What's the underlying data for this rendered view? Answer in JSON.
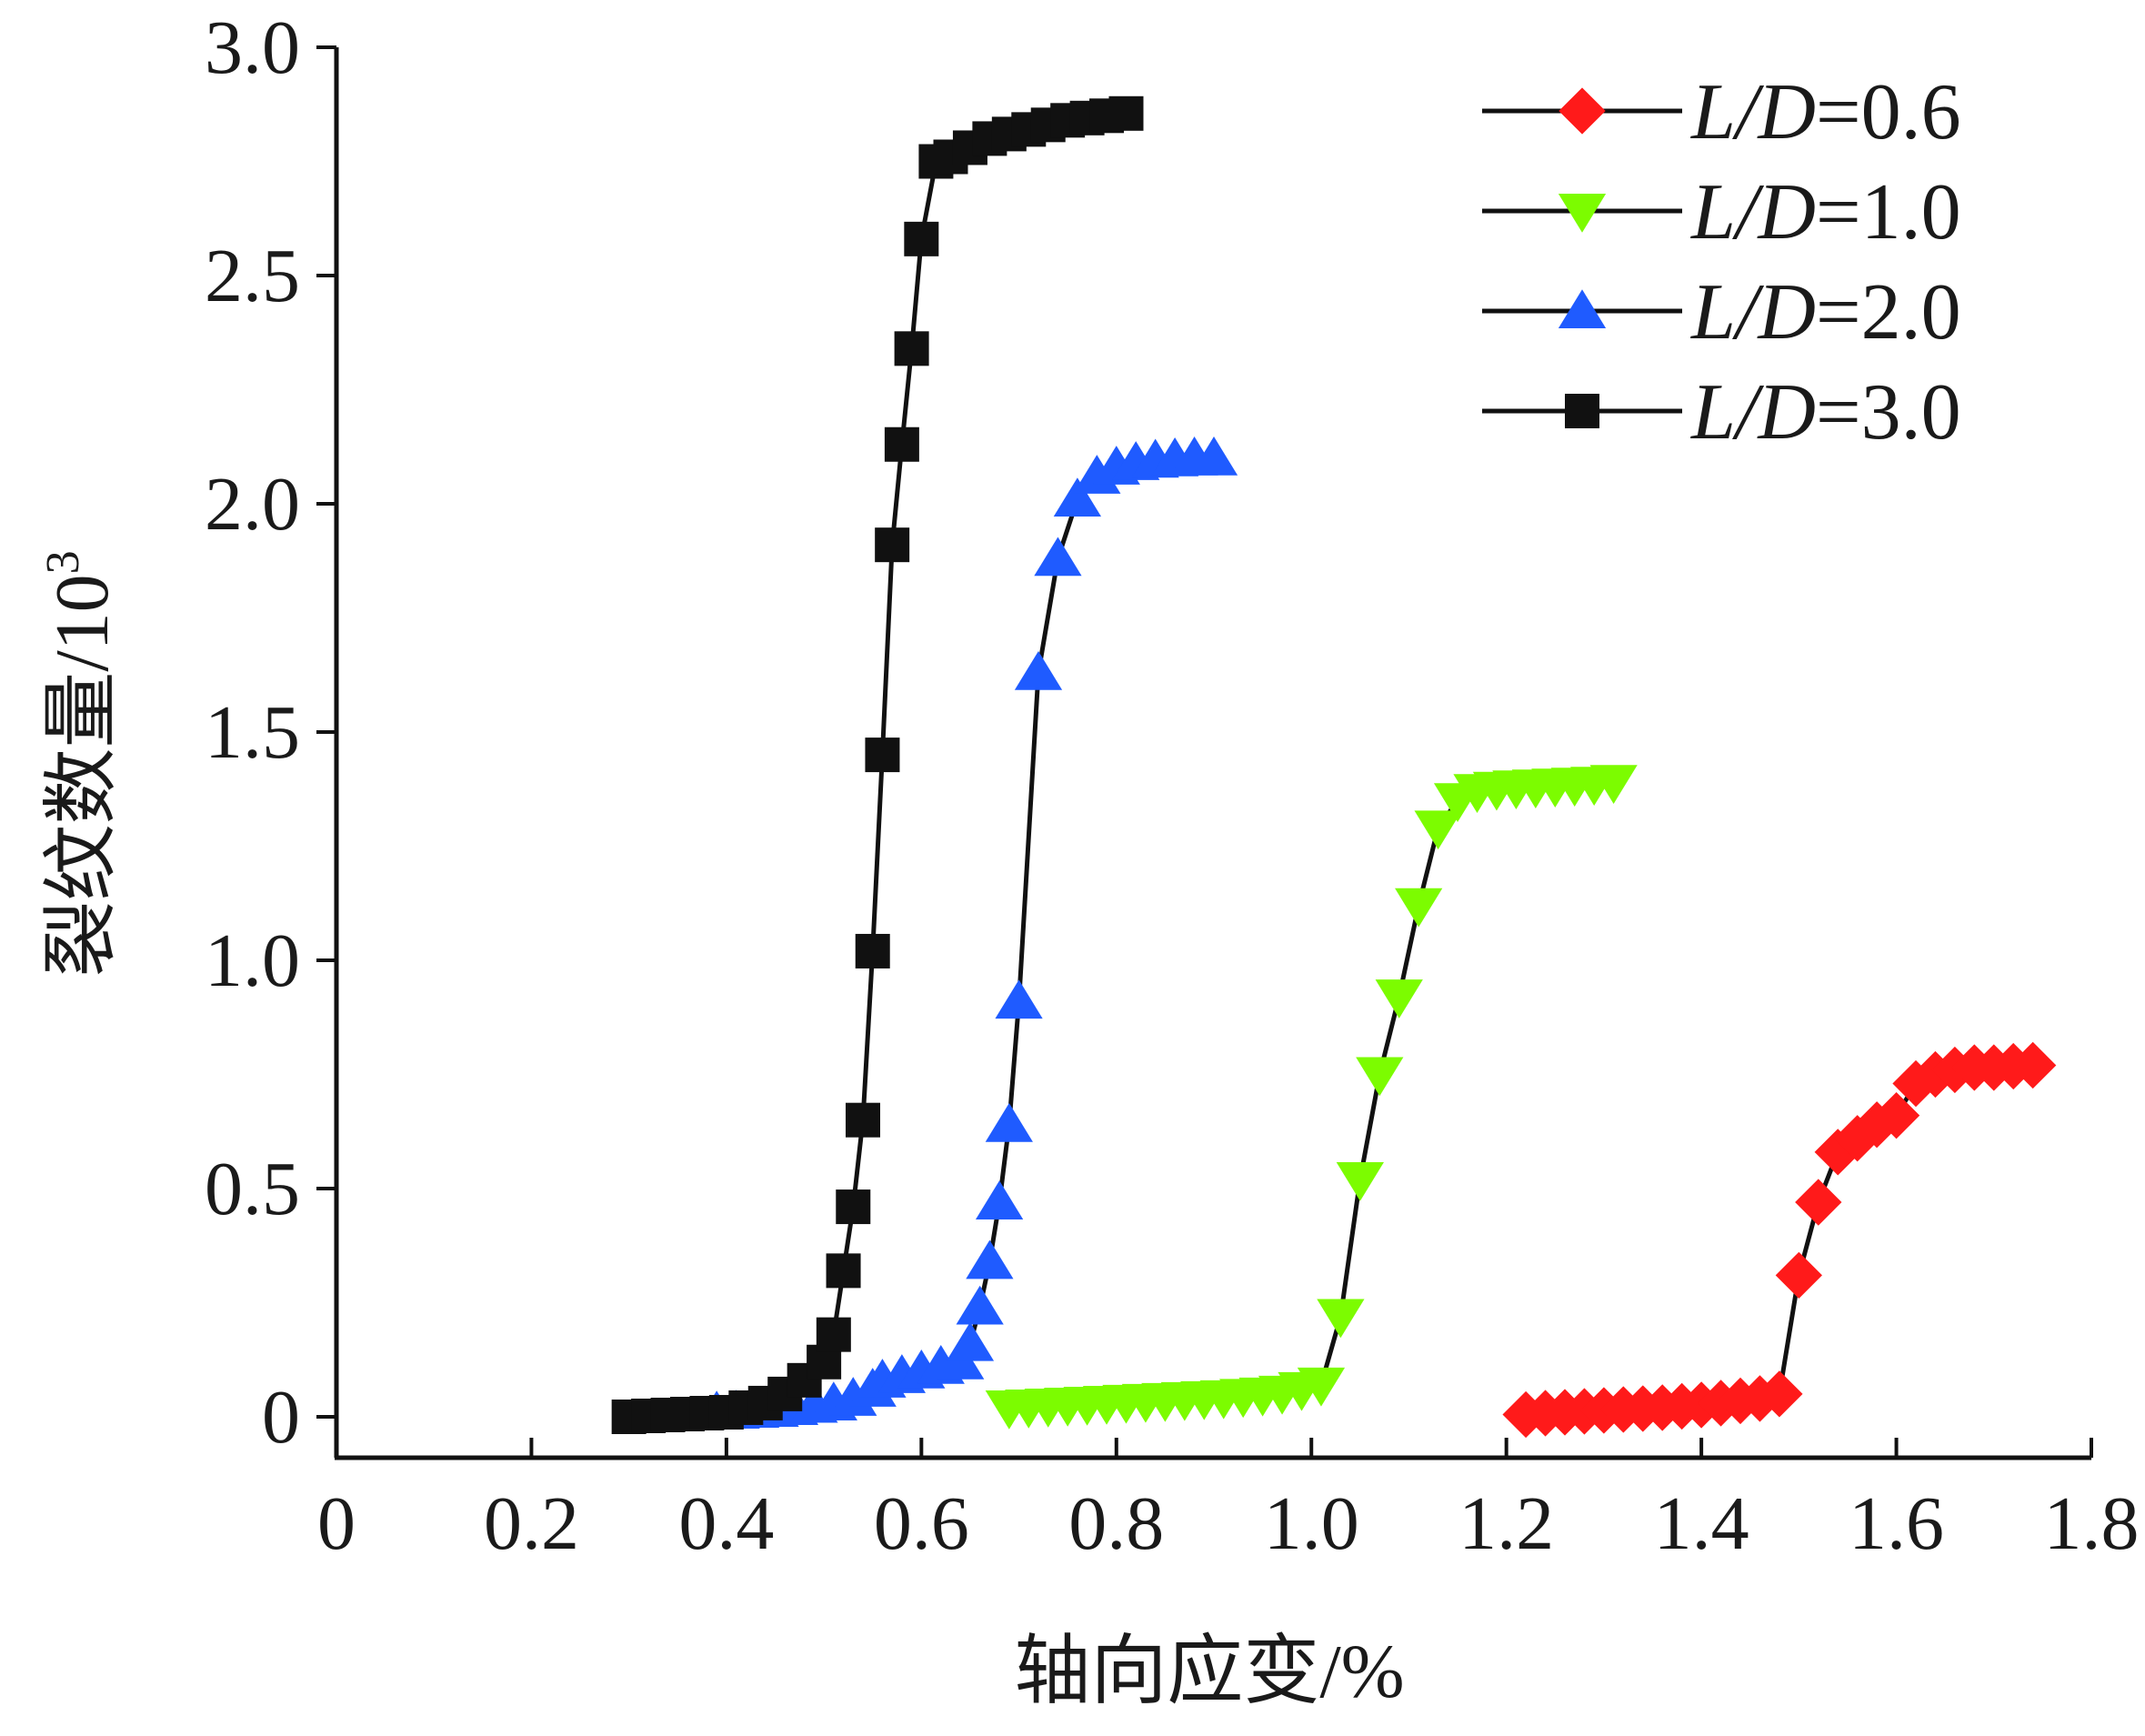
{
  "chart_data": {
    "type": "line",
    "xlabel": "轴向应变/%",
    "ylabel": "裂纹数量/10",
    "ylabel_sup": "3",
    "xlim": [
      0,
      1.8
    ],
    "ylim": [
      -0.1,
      3.0
    ],
    "xticks": [
      0,
      0.2,
      0.4,
      0.6,
      0.8,
      1.0,
      1.2,
      1.4,
      1.6,
      1.8
    ],
    "xtick_labels": [
      "0",
      "0.2",
      "0.4",
      "0.6",
      "0.8",
      "1.0",
      "1.2",
      "1.4",
      "1.6",
      "1.8"
    ],
    "yticks": [
      0,
      0.5,
      1.0,
      1.5,
      2.0,
      2.5,
      3.0
    ],
    "ytick_labels": [
      "0",
      "0.5",
      "1.0",
      "1.5",
      "2.0",
      "2.5",
      "3.0"
    ],
    "grid": false,
    "legend_position": "top-right",
    "series": [
      {
        "name_italic": "L/D",
        "name_rest": "=0.6",
        "color": "#ff1a1a",
        "marker": "diamond",
        "x": [
          1.22,
          1.24,
          1.26,
          1.28,
          1.3,
          1.32,
          1.34,
          1.36,
          1.38,
          1.4,
          1.42,
          1.44,
          1.46,
          1.48,
          1.5,
          1.52,
          1.54,
          1.56,
          1.58,
          1.6,
          1.62,
          1.64,
          1.66,
          1.68,
          1.7,
          1.72,
          1.74
        ],
        "y": [
          0.005,
          0.008,
          0.01,
          0.012,
          0.014,
          0.016,
          0.018,
          0.02,
          0.023,
          0.026,
          0.03,
          0.035,
          0.04,
          0.05,
          0.31,
          0.47,
          0.58,
          0.61,
          0.64,
          0.66,
          0.73,
          0.75,
          0.76,
          0.765,
          0.765,
          0.768,
          0.77
        ]
      },
      {
        "name_italic": "L/D",
        "name_rest": "=1.0",
        "color": "#7cfc00",
        "marker": "triangle-down",
        "x": [
          0.69,
          0.71,
          0.73,
          0.75,
          0.77,
          0.79,
          0.81,
          0.83,
          0.85,
          0.87,
          0.89,
          0.91,
          0.93,
          0.95,
          0.97,
          0.99,
          1.01,
          1.03,
          1.05,
          1.07,
          1.09,
          1.11,
          1.13,
          1.15,
          1.17,
          1.19,
          1.21,
          1.23,
          1.25,
          1.27,
          1.29,
          1.31
        ],
        "y": [
          0.02,
          0.022,
          0.024,
          0.026,
          0.028,
          0.03,
          0.032,
          0.034,
          0.036,
          0.038,
          0.04,
          0.042,
          0.045,
          0.048,
          0.052,
          0.06,
          0.07,
          0.22,
          0.52,
          0.75,
          0.92,
          1.12,
          1.29,
          1.35,
          1.37,
          1.375,
          1.378,
          1.38,
          1.382,
          1.384,
          1.386,
          1.39
        ]
      },
      {
        "name_italic": "L/D",
        "name_rest": "=2.0",
        "color": "#1f5bff",
        "marker": "triangle-up",
        "x": [
          0.39,
          0.41,
          0.43,
          0.45,
          0.47,
          0.49,
          0.51,
          0.53,
          0.55,
          0.56,
          0.58,
          0.6,
          0.62,
          0.64,
          0.65,
          0.66,
          0.67,
          0.68,
          0.69,
          0.7,
          0.72,
          0.74,
          0.76,
          0.78,
          0.8,
          0.82,
          0.84,
          0.86,
          0.88,
          0.9
        ],
        "y": [
          0.01,
          0.012,
          0.014,
          0.016,
          0.02,
          0.025,
          0.03,
          0.04,
          0.06,
          0.08,
          0.09,
          0.1,
          0.11,
          0.12,
          0.16,
          0.24,
          0.34,
          0.47,
          0.64,
          0.91,
          1.63,
          1.88,
          2.01,
          2.06,
          2.08,
          2.09,
          2.095,
          2.098,
          2.1,
          2.1
        ]
      },
      {
        "name_italic": "L/D",
        "name_rest": "=3.0",
        "color": "#111111",
        "marker": "square",
        "x": [
          0.3,
          0.32,
          0.34,
          0.36,
          0.38,
          0.4,
          0.42,
          0.44,
          0.46,
          0.48,
          0.5,
          0.51,
          0.52,
          0.53,
          0.54,
          0.55,
          0.56,
          0.57,
          0.58,
          0.59,
          0.6,
          0.615,
          0.63,
          0.65,
          0.67,
          0.69,
          0.71,
          0.73,
          0.75,
          0.77,
          0.79,
          0.81
        ],
        "y": [
          0.0,
          0.002,
          0.004,
          0.006,
          0.008,
          0.01,
          0.02,
          0.03,
          0.05,
          0.08,
          0.12,
          0.18,
          0.32,
          0.46,
          0.65,
          1.02,
          1.45,
          1.91,
          2.13,
          2.34,
          2.58,
          2.75,
          2.76,
          2.78,
          2.8,
          2.81,
          2.82,
          2.83,
          2.84,
          2.845,
          2.85,
          2.855
        ]
      }
    ]
  }
}
